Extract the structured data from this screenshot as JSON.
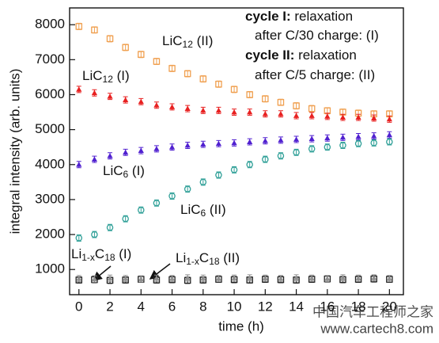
{
  "chart_data": {
    "type": "scatter",
    "xlabel": "time (h)",
    "ylabel": "integral intensity (arb. units)",
    "x": [
      0,
      1,
      2,
      3,
      4,
      5,
      6,
      7,
      8,
      9,
      10,
      11,
      12,
      13,
      14,
      15,
      16,
      17,
      18,
      19,
      20
    ],
    "xlim": [
      -0.6,
      20.9
    ],
    "xticks": [
      0,
      2,
      4,
      6,
      8,
      10,
      12,
      14,
      16,
      18,
      20
    ],
    "ylim": [
      280,
      8480
    ],
    "yticks": [
      1000,
      2000,
      3000,
      4000,
      5000,
      6000,
      7000,
      8000
    ],
    "series": [
      {
        "color": "#f0a050",
        "marker": "square-open",
        "error": 90,
        "values": [
          7950,
          7850,
          7600,
          7350,
          7150,
          6950,
          6750,
          6600,
          6450,
          6300,
          6150,
          6000,
          5880,
          5780,
          5680,
          5600,
          5540,
          5500,
          5470,
          5450,
          5450
        ]
      },
      {
        "color": "#e82020",
        "marker": "triangle",
        "error": 90,
        "values": [
          6150,
          6050,
          5950,
          5850,
          5800,
          5700,
          5650,
          5600,
          5550,
          5550,
          5500,
          5500,
          5450,
          5450,
          5400,
          5400,
          5380,
          5350,
          5350,
          5330,
          5300
        ]
      },
      {
        "color": "#5020d0",
        "marker": "triangle",
        "error": 90,
        "values": [
          4000,
          4150,
          4250,
          4350,
          4400,
          4450,
          4500,
          4550,
          4580,
          4600,
          4620,
          4650,
          4680,
          4700,
          4720,
          4740,
          4760,
          4780,
          4800,
          4820,
          4850
        ]
      },
      {
        "color": "#30a098",
        "marker": "circle-open",
        "error": 90,
        "values": [
          1900,
          2000,
          2200,
          2450,
          2700,
          2900,
          3100,
          3300,
          3500,
          3700,
          3850,
          4000,
          4150,
          4250,
          4350,
          4450,
          4500,
          4550,
          4600,
          4620,
          4650
        ]
      },
      {
        "color": "#222222",
        "marker": "square-open",
        "error": 90,
        "values": [
          700,
          710,
          690,
          700,
          720,
          700,
          710,
          690,
          700,
          720,
          710,
          700,
          720,
          710,
          700,
          720,
          730,
          710,
          720,
          730,
          720
        ]
      },
      {
        "color": "#909090",
        "marker": "triangle",
        "error": 90,
        "values": [
          740,
          730,
          750,
          740,
          730,
          750,
          740,
          760,
          750,
          740,
          750,
          760,
          750,
          740,
          760,
          750,
          740,
          760,
          750,
          760,
          740
        ]
      }
    ],
    "annotations": [
      {
        "parts": [
          {
            "text": "LiC"
          },
          {
            "sub": "12"
          },
          {
            "text": " (II)"
          }
        ]
      },
      {
        "parts": [
          {
            "text": "LiC"
          },
          {
            "sub": "12"
          },
          {
            "text": " (I)"
          }
        ]
      },
      {
        "parts": [
          {
            "text": "LiC"
          },
          {
            "sub": "6"
          },
          {
            "text": " (I)"
          }
        ]
      },
      {
        "parts": [
          {
            "text": "LiC"
          },
          {
            "sub": "6"
          },
          {
            "text": " (II)"
          }
        ]
      },
      {
        "parts": [
          {
            "text": "Li"
          },
          {
            "sub": "1-x"
          },
          {
            "text": "C"
          },
          {
            "sub": "18"
          },
          {
            "text": " (I)"
          }
        ]
      },
      {
        "parts": [
          {
            "text": "Li"
          },
          {
            "sub": "1-x"
          },
          {
            "text": "C"
          },
          {
            "sub": "18"
          },
          {
            "text": " (II)"
          }
        ]
      },
      {
        "parts": [
          {
            "bold": "cycle I:"
          },
          {
            "text": " relaxation"
          }
        ]
      },
      {
        "parts": [
          {
            "text": "after C/30 charge: (I)"
          }
        ]
      },
      {
        "parts": [
          {
            "bold": "cycle II:"
          },
          {
            "text": " relaxation"
          }
        ]
      },
      {
        "parts": [
          {
            "text": "after C/5 charge: (II)"
          }
        ]
      }
    ],
    "watermark": [
      "中国汽车工程师之家",
      "www.cartech8.com"
    ]
  }
}
